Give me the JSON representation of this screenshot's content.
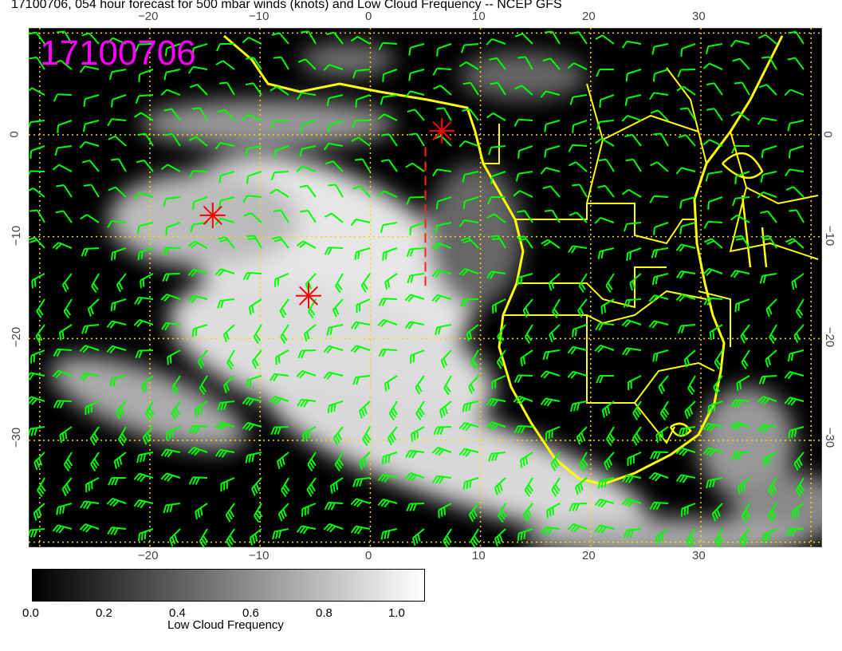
{
  "title": "17100706, 054 hour forecast for 500 mbar winds (knots) and Low Cloud Frequency -- NCEP GFS",
  "date_label": "17100706",
  "map": {
    "lon_range": [
      -31,
      41
    ],
    "lat_range": [
      -40.5,
      10.5
    ],
    "lon_ticks": [
      "−20",
      "−10",
      "0",
      "10",
      "20",
      "30"
    ],
    "lat_ticks": [
      "0",
      "−10",
      "−20",
      "−30"
    ],
    "grid": true,
    "colors": {
      "background": "#000000",
      "coastline": "#ffff00",
      "barbs": "#00ff00",
      "markers": "#ff0000",
      "grid": "#ffd700",
      "date_label": "#ff00ff"
    },
    "markers": [
      {
        "lon": -14.3,
        "lat": -7.9
      },
      {
        "lon": -5.6,
        "lat": -15.8
      },
      {
        "lon": 6.5,
        "lat": 0.4
      }
    ],
    "dashed_line": {
      "lon": 5,
      "lat_from": -1.2,
      "lat_to": -15
    }
  },
  "colorbar": {
    "label": "Low Cloud Frequency",
    "ticks": [
      "0.0",
      "0.2",
      "0.4",
      "0.6",
      "0.8",
      "1.0"
    ],
    "range": [
      0,
      1
    ]
  }
}
